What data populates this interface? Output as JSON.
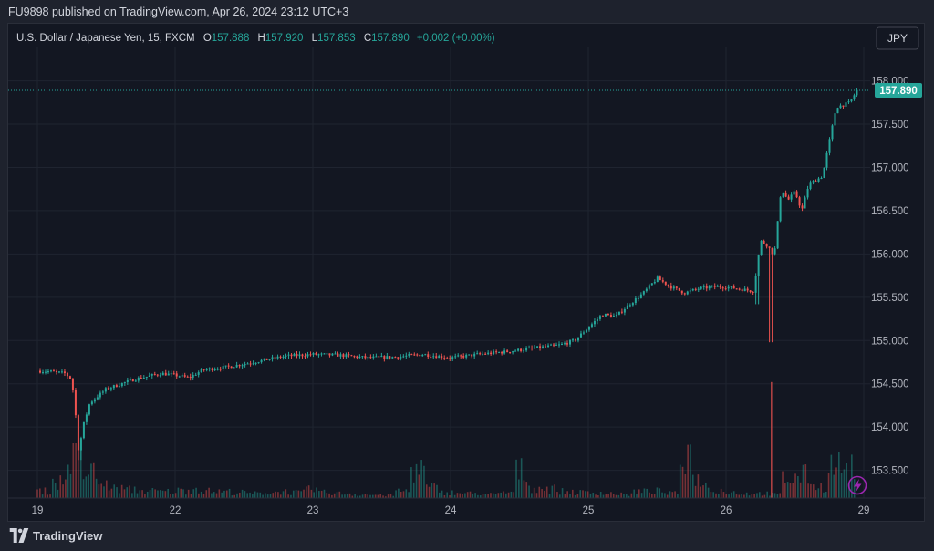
{
  "header": {
    "published": "FU9898 published on TradingView.com, Apr 26, 2024 23:12 UTC+3"
  },
  "legend": {
    "symbol": "U.S. Dollar / Japanese Yen, 15, FXCM",
    "open_label": "O",
    "open": "157.888",
    "high_label": "H",
    "high": "157.920",
    "low_label": "L",
    "low": "157.853",
    "close_label": "C",
    "close": "157.890",
    "change": "+0.002 (+0.00%)"
  },
  "currency_button": "JPY",
  "last_price_label": "157.890",
  "footer": {
    "brand": "TradingView"
  },
  "colors": {
    "up": "#26a69a",
    "down": "#ef5350",
    "grid": "#1f2430",
    "text": "#b2b5be",
    "bg": "#131722",
    "price_tag": "#26a69a",
    "bolt": "#9c27b0"
  },
  "chart_data": {
    "type": "candlestick",
    "title": "U.S. Dollar / Japanese Yen, 15, FXCM",
    "y_axis": {
      "ticks": [
        153.5,
        154.0,
        154.5,
        155.0,
        155.5,
        156.0,
        156.5,
        157.0,
        157.5,
        158.0
      ],
      "tick_labels": [
        "153.500",
        "154.000",
        "154.500",
        "155.000",
        "155.500",
        "156.000",
        "156.500",
        "157.000",
        "157.500",
        "158.000"
      ],
      "range": [
        153.18,
        158.28
      ],
      "side": "right"
    },
    "x_axis": {
      "tick_labels": [
        "19",
        "22",
        "23",
        "24",
        "25",
        "26",
        "29"
      ],
      "range": [
        0,
        6
      ]
    },
    "last_price": 157.89,
    "series": [
      {
        "name": "USDJPY",
        "points": [
          [
            0.0,
            154.65
          ],
          [
            0.1,
            154.64
          ],
          [
            0.2,
            154.62
          ],
          [
            0.25,
            154.55
          ],
          [
            0.28,
            154.1
          ],
          [
            0.3,
            153.7
          ],
          [
            0.33,
            154.0
          ],
          [
            0.38,
            154.28
          ],
          [
            0.5,
            154.44
          ],
          [
            0.7,
            154.55
          ],
          [
            0.9,
            154.62
          ],
          [
            1.0,
            154.6
          ],
          [
            1.1,
            154.57
          ],
          [
            1.2,
            154.66
          ],
          [
            1.4,
            154.7
          ],
          [
            1.6,
            154.76
          ],
          [
            1.8,
            154.82
          ],
          [
            2.0,
            154.84
          ],
          [
            2.2,
            154.83
          ],
          [
            2.4,
            154.8
          ],
          [
            2.6,
            154.81
          ],
          [
            2.8,
            154.84
          ],
          [
            3.0,
            154.8
          ],
          [
            3.2,
            154.84
          ],
          [
            3.4,
            154.87
          ],
          [
            3.6,
            154.91
          ],
          [
            3.8,
            154.95
          ],
          [
            3.9,
            155.0
          ],
          [
            4.0,
            155.15
          ],
          [
            4.1,
            155.3
          ],
          [
            4.2,
            155.28
          ],
          [
            4.3,
            155.42
          ],
          [
            4.4,
            155.55
          ],
          [
            4.5,
            155.72
          ],
          [
            4.6,
            155.62
          ],
          [
            4.7,
            155.55
          ],
          [
            4.8,
            155.6
          ],
          [
            4.9,
            155.62
          ],
          [
            5.0,
            155.62
          ],
          [
            5.2,
            155.57
          ],
          [
            5.25,
            156.15
          ],
          [
            5.3,
            156.1
          ],
          [
            5.35,
            155.98
          ],
          [
            5.4,
            156.75
          ],
          [
            5.45,
            156.62
          ],
          [
            5.5,
            156.72
          ],
          [
            5.55,
            156.5
          ],
          [
            5.6,
            156.8
          ],
          [
            5.7,
            156.9
          ],
          [
            5.75,
            157.3
          ],
          [
            5.8,
            157.7
          ],
          [
            5.85,
            157.72
          ],
          [
            5.9,
            157.75
          ],
          [
            5.95,
            157.89
          ]
        ]
      },
      {
        "name": "Volume",
        "values": [
          0.15,
          0.35,
          0.92,
          0.55,
          0.28,
          0.2,
          0.18,
          0.15,
          0.14,
          0.16,
          0.2,
          0.15,
          0.14,
          0.12,
          0.1,
          0.12,
          0.14,
          0.12,
          0.18,
          0.12,
          0.1,
          0.08,
          0.07,
          0.06,
          0.15,
          0.62,
          0.22,
          0.12,
          0.1,
          0.1,
          0.08,
          0.12,
          0.58,
          0.22,
          0.2,
          0.14,
          0.12,
          0.12,
          0.1,
          0.08,
          0.14,
          0.15,
          0.1,
          0.95,
          0.38,
          0.18,
          0.12,
          0.1,
          0.1,
          0.08,
          0.42,
          0.48,
          0.25,
          0.7,
          0.62
        ]
      }
    ]
  }
}
